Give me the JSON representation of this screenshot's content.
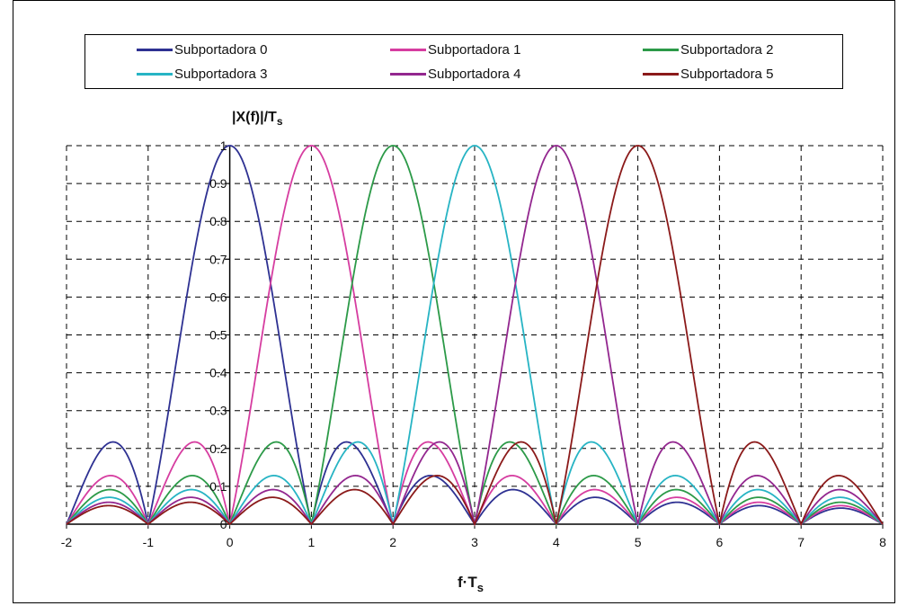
{
  "chart_data": {
    "type": "line",
    "title": "",
    "ylabel": "|X(f)|/T",
    "ylabel_sub": "s",
    "xlabel": "f·T",
    "xlabel_sub": "s",
    "xlim": [
      -2,
      8
    ],
    "ylim": [
      0,
      1
    ],
    "x_ticks": [
      "-2",
      "-1",
      "0",
      "1",
      "2",
      "3",
      "4",
      "5",
      "6",
      "7",
      "8"
    ],
    "y_ticks": [
      "0",
      "0.1",
      "0.2",
      "0.3",
      "0.4",
      "0.5",
      "0.6",
      "0.7",
      "0.8",
      "0.9",
      "1"
    ],
    "grid": true,
    "legend_position": "top",
    "function": "|sinc(x - k)|",
    "series": [
      {
        "name": "Subportadora 0",
        "center": 0,
        "color": "#2e3192"
      },
      {
        "name": "Subportadora 1",
        "center": 1,
        "color": "#d63da0"
      },
      {
        "name": "Subportadora 2",
        "center": 2,
        "color": "#2c9a48"
      },
      {
        "name": "Subportadora 3",
        "center": 3,
        "color": "#27b4c4"
      },
      {
        "name": "Subportadora 4",
        "center": 4,
        "color": "#93278f"
      },
      {
        "name": "Subportadora 5",
        "center": 5,
        "color": "#8b1a1a"
      }
    ]
  }
}
